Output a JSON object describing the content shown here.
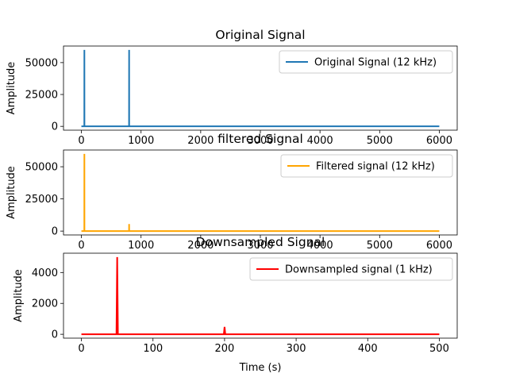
{
  "chart_data": [
    {
      "type": "line",
      "title": "Original Signal",
      "xlabel": "",
      "ylabel": "Amplitude",
      "xlim": [
        -300,
        6300
      ],
      "ylim": [
        -3000,
        63000
      ],
      "xticks": [
        0,
        1000,
        2000,
        3000,
        4000,
        5000,
        6000
      ],
      "yticks": [
        0,
        25000,
        50000
      ],
      "legend_position": "top-right",
      "series": [
        {
          "name": "Original Signal (12 kHz)",
          "color": "#1f77b4",
          "x": [
            0,
            49,
            50,
            51,
            799,
            800,
            801,
            6000
          ],
          "y": [
            0,
            0,
            60000,
            0,
            0,
            60000,
            0,
            0
          ]
        }
      ]
    },
    {
      "type": "line",
      "title": "filtered Signal",
      "xlabel": "",
      "ylabel": "Amplitude",
      "xlim": [
        -300,
        6300
      ],
      "ylim": [
        -3000,
        63000
      ],
      "xticks": [
        0,
        1000,
        2000,
        3000,
        4000,
        5000,
        6000
      ],
      "yticks": [
        0,
        25000,
        50000
      ],
      "legend_position": "top-right",
      "series": [
        {
          "name": "Filtered signal (12 kHz)",
          "color": "#ffa500",
          "x": [
            0,
            49,
            50,
            51,
            799,
            800,
            801,
            6000
          ],
          "y": [
            0,
            0,
            60000,
            0,
            0,
            5500,
            0,
            0
          ]
        }
      ]
    },
    {
      "type": "line",
      "title": "Downsampled Signal",
      "xlabel": "Time (s)",
      "ylabel": "Amplitude",
      "xlim": [
        -25,
        525
      ],
      "ylim": [
        -250,
        5250
      ],
      "xticks": [
        0,
        100,
        200,
        300,
        400,
        500
      ],
      "yticks": [
        0,
        2000,
        4000
      ],
      "legend_position": "top-right",
      "series": [
        {
          "name": "Downsampled signal (1 kHz)",
          "color": "#ff0000",
          "x": [
            0,
            49,
            50,
            51,
            199,
            200,
            201,
            500
          ],
          "y": [
            0,
            0,
            5000,
            0,
            0,
            480,
            0,
            0
          ]
        }
      ]
    }
  ]
}
